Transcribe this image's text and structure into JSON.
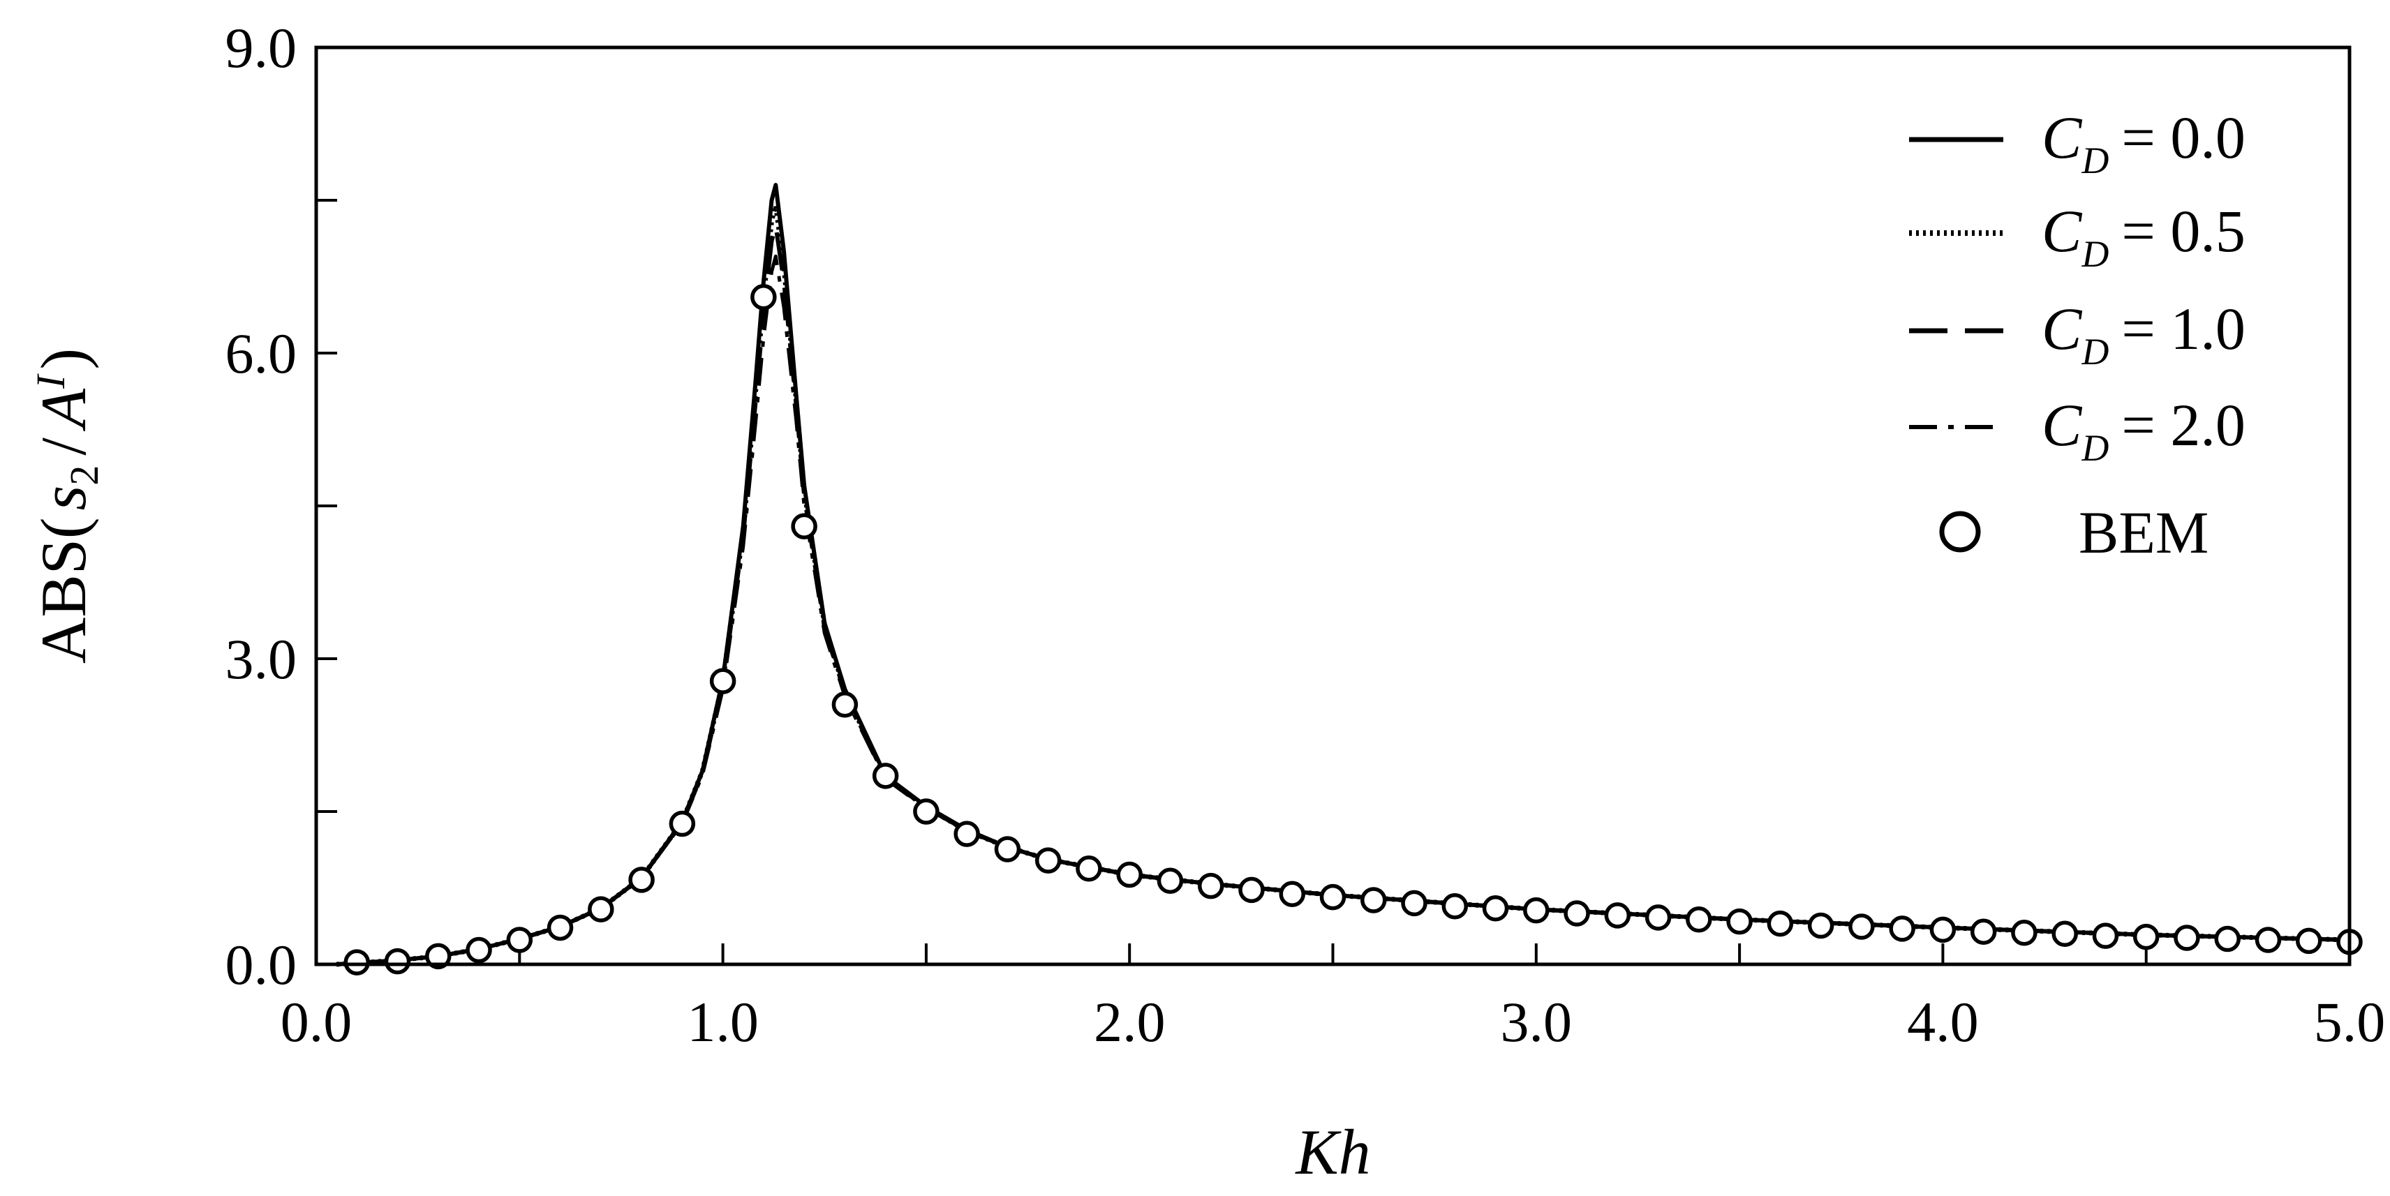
{
  "chart_data": {
    "type": "line",
    "xlabel": "Kh",
    "ylabel": {
      "prefix": "ABS(",
      "s": "s",
      "s_sub": "2",
      "slash": "/",
      "A": "A",
      "A_sup": "I",
      "suffix": ")"
    },
    "xlim": [
      0.0,
      5.0
    ],
    "ylim": [
      0.0,
      9.0
    ],
    "x_ticks": [
      0.0,
      1.0,
      2.0,
      3.0,
      4.0,
      5.0
    ],
    "x_tick_labels": [
      "0.0",
      "1.0",
      "2.0",
      "3.0",
      "4.0",
      "5.0"
    ],
    "x_minor_step": 0.5,
    "y_ticks": [
      0.0,
      3.0,
      6.0,
      9.0
    ],
    "y_tick_labels": [
      "0.0",
      "3.0",
      "6.0",
      "9.0"
    ],
    "y_minor_step": 1.5,
    "grid": false,
    "legend_position": "top-right",
    "series": [
      {
        "name": "C_D = 0.0",
        "label_var": "C",
        "label_sub": "D",
        "label_eq": "= 0.0",
        "style": "solid",
        "x": [
          0.05,
          0.2,
          0.3,
          0.4,
          0.5,
          0.6,
          0.7,
          0.8,
          0.9,
          0.95,
          1.0,
          1.05,
          1.08,
          1.1,
          1.12,
          1.13,
          1.15,
          1.18,
          1.2,
          1.25,
          1.3,
          1.4,
          1.5,
          1.6,
          1.7,
          1.8,
          2.0,
          2.2,
          2.5,
          3.0,
          3.5,
          4.0,
          4.5,
          5.0
        ],
        "y": [
          0.0,
          0.04,
          0.08,
          0.15,
          0.25,
          0.37,
          0.55,
          0.85,
          1.4,
          1.9,
          2.8,
          4.3,
          5.7,
          6.7,
          7.5,
          7.65,
          7.0,
          5.6,
          4.7,
          3.35,
          2.7,
          1.85,
          1.55,
          1.32,
          1.15,
          1.03,
          0.88,
          0.79,
          0.68,
          0.54,
          0.44,
          0.36,
          0.29,
          0.24
        ]
      },
      {
        "name": "C_D = 0.5",
        "label_var": "C",
        "label_sub": "D",
        "label_eq": "= 0.5",
        "style": "dotted",
        "x": [
          0.05,
          0.2,
          0.3,
          0.4,
          0.5,
          0.6,
          0.7,
          0.8,
          0.9,
          0.95,
          1.0,
          1.05,
          1.08,
          1.1,
          1.12,
          1.13,
          1.15,
          1.18,
          1.2,
          1.25,
          1.3,
          1.4,
          1.5,
          1.6,
          1.7,
          1.8,
          2.0,
          2.2,
          2.5,
          3.0,
          3.5,
          4.0,
          4.5,
          5.0
        ],
        "y": [
          0.0,
          0.04,
          0.08,
          0.15,
          0.25,
          0.37,
          0.55,
          0.85,
          1.4,
          1.9,
          2.78,
          4.25,
          5.6,
          6.55,
          7.3,
          7.45,
          6.85,
          5.55,
          4.65,
          3.33,
          2.68,
          1.84,
          1.54,
          1.31,
          1.15,
          1.03,
          0.88,
          0.79,
          0.68,
          0.54,
          0.44,
          0.36,
          0.29,
          0.24
        ]
      },
      {
        "name": "C_D = 1.0",
        "label_var": "C",
        "label_sub": "D",
        "label_eq": "= 1.0",
        "style": "dashed",
        "x": [
          0.05,
          0.2,
          0.3,
          0.4,
          0.5,
          0.6,
          0.7,
          0.8,
          0.9,
          0.95,
          1.0,
          1.05,
          1.08,
          1.1,
          1.12,
          1.13,
          1.15,
          1.18,
          1.2,
          1.25,
          1.3,
          1.4,
          1.5,
          1.6,
          1.7,
          1.8,
          2.0,
          2.2,
          2.5,
          3.0,
          3.5,
          4.0,
          4.5,
          5.0
        ],
        "y": [
          0.0,
          0.04,
          0.08,
          0.15,
          0.25,
          0.37,
          0.55,
          0.85,
          1.39,
          1.88,
          2.75,
          4.2,
          5.5,
          6.4,
          7.1,
          7.25,
          6.7,
          5.5,
          4.6,
          3.3,
          2.66,
          1.83,
          1.54,
          1.31,
          1.15,
          1.03,
          0.88,
          0.79,
          0.68,
          0.54,
          0.44,
          0.36,
          0.29,
          0.24
        ]
      },
      {
        "name": "C_D = 2.0",
        "label_var": "C",
        "label_sub": "D",
        "label_eq": "= 2.0",
        "style": "dashdot",
        "x": [
          0.05,
          0.2,
          0.3,
          0.4,
          0.5,
          0.6,
          0.7,
          0.8,
          0.9,
          0.95,
          1.0,
          1.05,
          1.08,
          1.1,
          1.12,
          1.13,
          1.15,
          1.18,
          1.2,
          1.25,
          1.3,
          1.4,
          1.5,
          1.6,
          1.7,
          1.8,
          2.0,
          2.2,
          2.5,
          3.0,
          3.5,
          4.0,
          4.5,
          5.0
        ],
        "y": [
          0.0,
          0.04,
          0.08,
          0.15,
          0.25,
          0.37,
          0.55,
          0.85,
          1.38,
          1.86,
          2.7,
          4.1,
          5.3,
          6.15,
          6.8,
          6.95,
          6.45,
          5.35,
          4.5,
          3.25,
          2.63,
          1.82,
          1.53,
          1.31,
          1.15,
          1.03,
          0.88,
          0.79,
          0.68,
          0.54,
          0.44,
          0.36,
          0.29,
          0.24
        ]
      },
      {
        "name": "BEM",
        "style": "circles",
        "x": [
          0.1,
          0.2,
          0.3,
          0.4,
          0.5,
          0.6,
          0.7,
          0.8,
          0.9,
          1.0,
          1.1,
          1.2,
          1.3,
          1.4,
          1.5,
          1.6,
          1.7,
          1.8,
          1.9,
          2.0,
          2.1,
          2.2,
          2.3,
          2.4,
          2.5,
          2.6,
          2.7,
          2.8,
          2.9,
          3.0,
          3.1,
          3.2,
          3.3,
          3.4,
          3.5,
          3.6,
          3.7,
          3.8,
          3.9,
          4.0,
          4.1,
          4.2,
          4.3,
          4.4,
          4.5,
          4.6,
          4.7,
          4.8,
          4.9,
          5.0
        ],
        "y": [
          0.02,
          0.03,
          0.08,
          0.14,
          0.24,
          0.36,
          0.54,
          0.83,
          1.38,
          2.78,
          6.55,
          4.3,
          2.55,
          1.85,
          1.5,
          1.28,
          1.13,
          1.02,
          0.94,
          0.88,
          0.82,
          0.77,
          0.73,
          0.69,
          0.66,
          0.63,
          0.6,
          0.57,
          0.55,
          0.53,
          0.5,
          0.48,
          0.46,
          0.44,
          0.42,
          0.4,
          0.38,
          0.37,
          0.35,
          0.34,
          0.32,
          0.31,
          0.3,
          0.28,
          0.27,
          0.26,
          0.25,
          0.24,
          0.23,
          0.22
        ]
      }
    ]
  }
}
